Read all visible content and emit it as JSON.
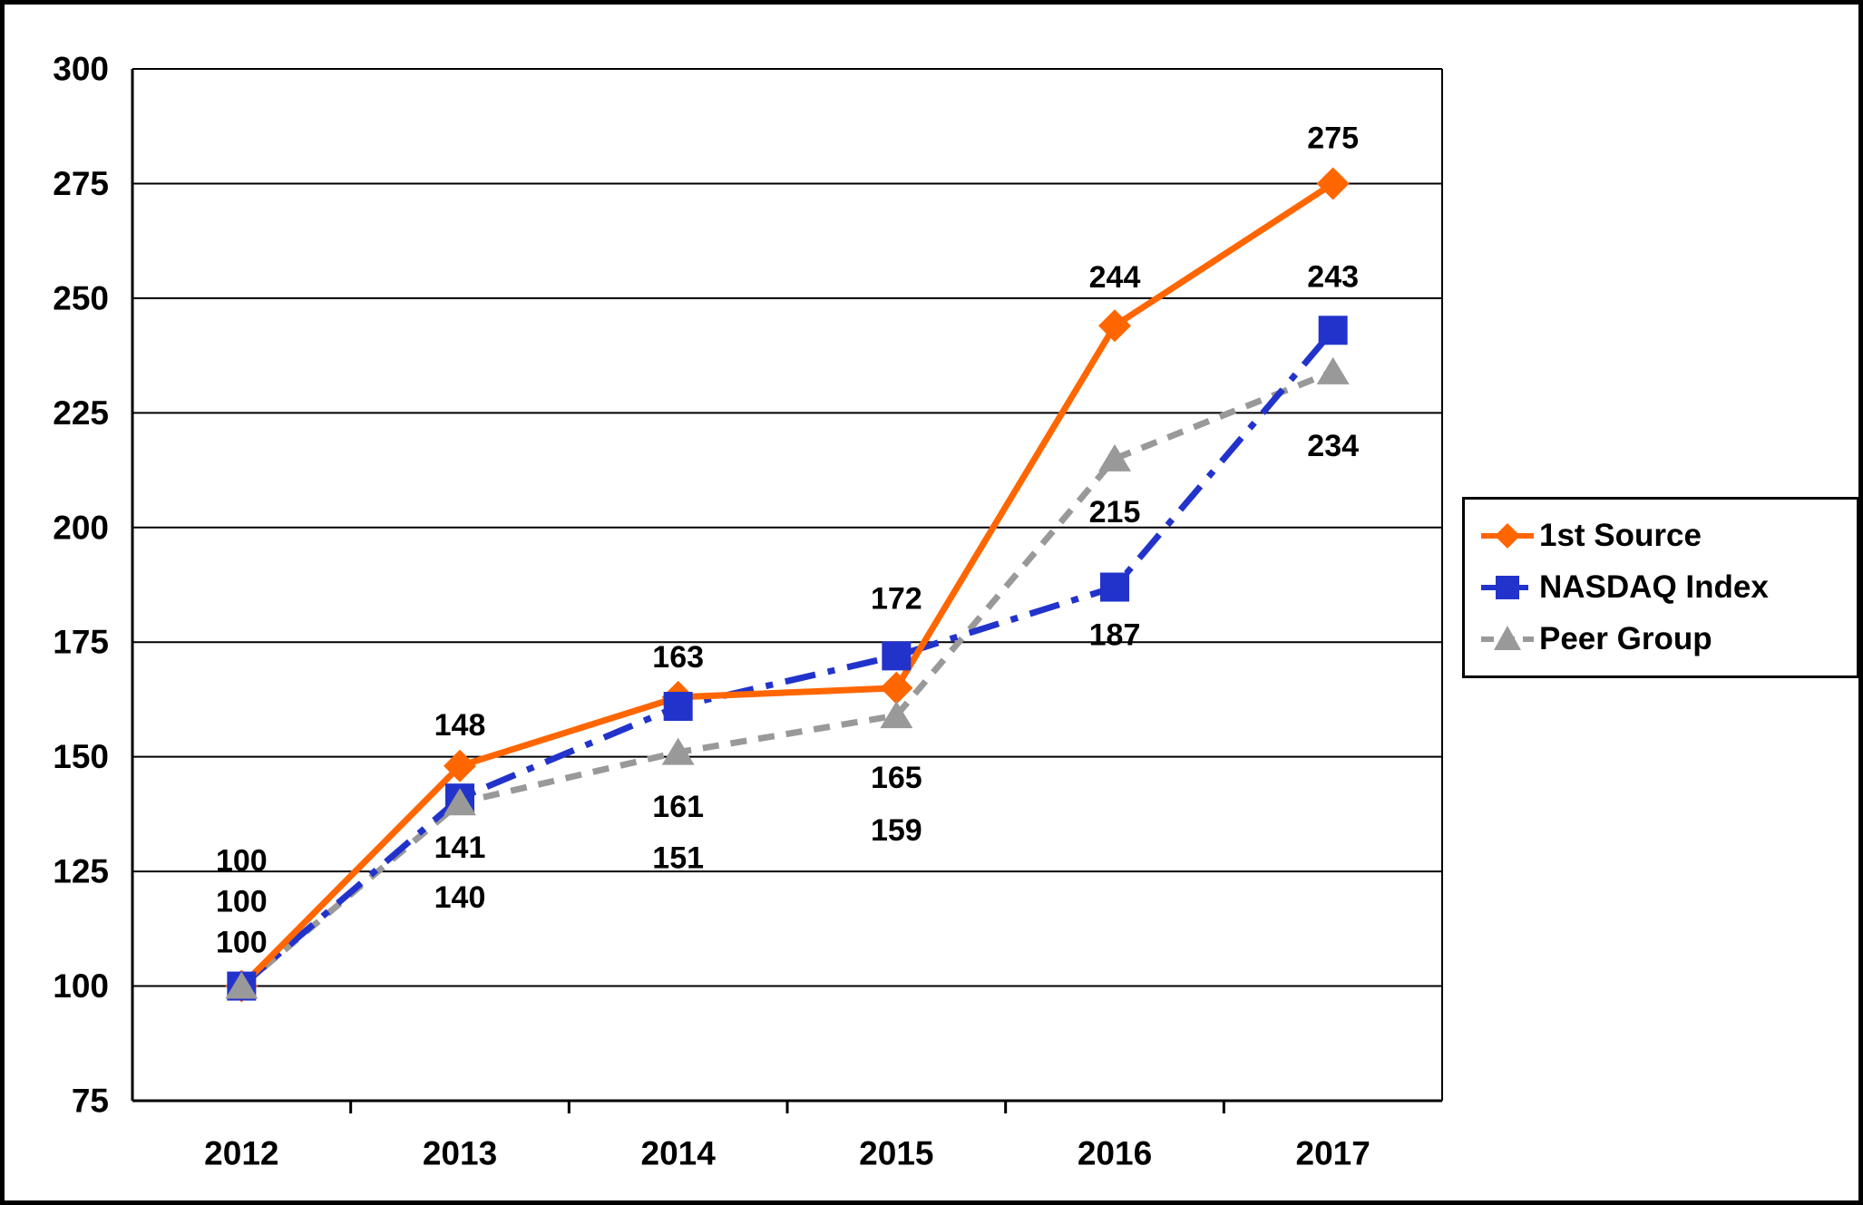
{
  "chart_data": {
    "type": "line",
    "title": "",
    "x": [
      "2012",
      "2013",
      "2014",
      "2015",
      "2016",
      "2017"
    ],
    "series": [
      {
        "name": "1st Source",
        "color": "#FF6600",
        "marker": "diamond",
        "line_style": "solid",
        "values": [
          100,
          148,
          163,
          165,
          244,
          275
        ]
      },
      {
        "name": "NASDAQ Index",
        "color": "#2233CC",
        "marker": "square",
        "line_style": "dashdot",
        "values": [
          100,
          141,
          161,
          172,
          187,
          243
        ]
      },
      {
        "name": "Peer Group",
        "color": "#999999",
        "marker": "triangle",
        "line_style": "dashed",
        "values": [
          100,
          140,
          151,
          159,
          215,
          234
        ]
      }
    ],
    "ylim": [
      75,
      300
    ],
    "ytick_step": 25,
    "yticks": [
      75,
      100,
      125,
      150,
      175,
      200,
      225,
      250,
      275,
      300
    ],
    "grid": true,
    "legend_position": "right",
    "data_labels_shown": true
  }
}
